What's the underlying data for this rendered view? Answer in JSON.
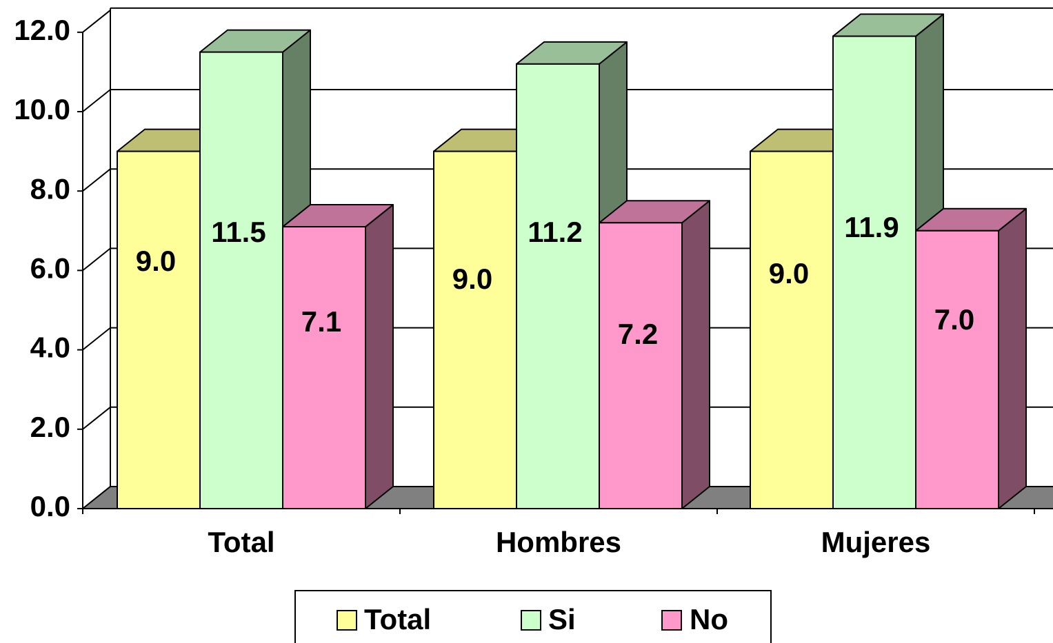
{
  "chart_data": {
    "type": "bar",
    "categories": [
      "Total",
      "Hombres",
      "Mujeres"
    ],
    "series": [
      {
        "name": "Total",
        "values": [
          9.0,
          9.0,
          9.0
        ],
        "value_labels": [
          "9.0",
          "9.0",
          "9.0"
        ],
        "color": "#FFFF99",
        "top_color": "#BFBF73",
        "side_color": "#80804D"
      },
      {
        "name": "Si",
        "values": [
          11.5,
          11.2,
          11.9
        ],
        "value_labels": [
          "11.5",
          "11.2",
          "11.9"
        ],
        "color": "#CCFFCC",
        "top_color": "#99BF99",
        "side_color": "#668066"
      },
      {
        "name": "No",
        "values": [
          7.1,
          7.2,
          7.0
        ],
        "value_labels": [
          "7.1",
          "7.2",
          "7.0"
        ],
        "color": "#FF99CC",
        "top_color": "#BF7399",
        "side_color": "#804D66"
      }
    ],
    "y_ticks": [
      "0.0",
      "2.0",
      "4.0",
      "6.0",
      "8.0",
      "10.0",
      "12.0"
    ],
    "ylim": [
      0,
      12
    ],
    "title": "",
    "xlabel": "",
    "ylabel": "",
    "grid": true,
    "legend_position": "bottom",
    "three_d": true
  }
}
